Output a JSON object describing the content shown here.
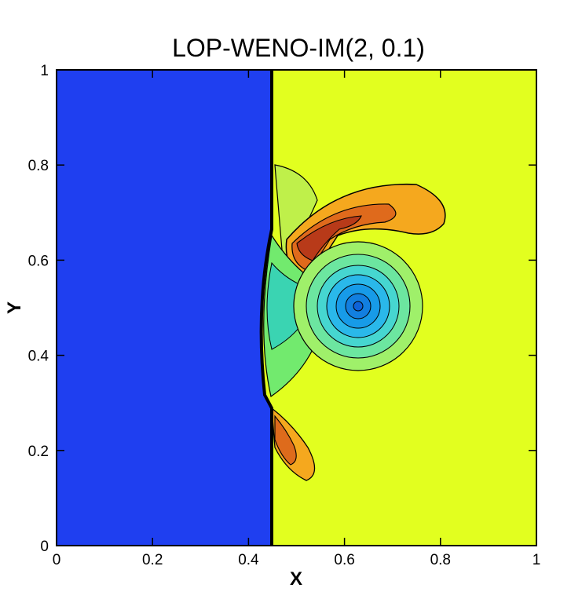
{
  "chart_data": {
    "type": "contour",
    "title": "LOP-WENO-IM(2, 0.1)",
    "xlabel": "X",
    "ylabel": "Y",
    "xlim": [
      0,
      1
    ],
    "ylim": [
      0,
      1
    ],
    "x_ticks": [
      "0",
      "0.2",
      "0.4",
      "0.6",
      "0.8",
      "1"
    ],
    "y_ticks": [
      "0",
      "0.2",
      "0.4",
      "0.6",
      "0.8",
      "1"
    ],
    "x_tick_values": [
      0,
      0.2,
      0.4,
      0.6,
      0.8,
      1
    ],
    "y_tick_values": [
      0,
      0.2,
      0.4,
      0.6,
      0.8,
      1
    ],
    "shock_x": 0.45,
    "vortex_center": [
      0.63,
      0.51
    ],
    "colors": {
      "left_region": "#1f3ff0",
      "right_region": "#e2ff1f",
      "high": "#c4401a",
      "mid": "#f5a81e",
      "low": "#1fa0e8",
      "green": "#88f05a"
    }
  }
}
